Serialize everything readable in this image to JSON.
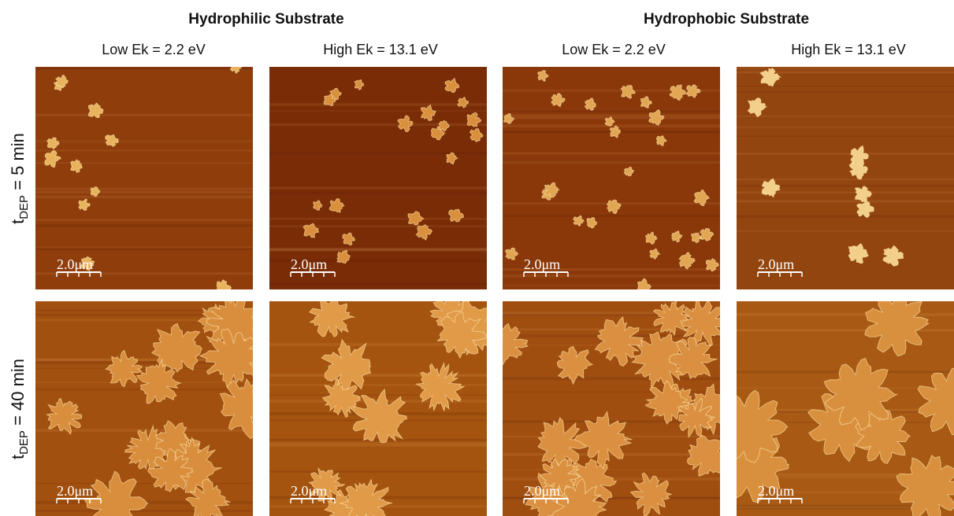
{
  "header": {
    "groups": [
      "Hydrophilic Substrate",
      "Hydrophobic Substrate"
    ],
    "columns": [
      "Low Ek = 2.2 eV",
      "High Ek = 13.1 eV",
      "Low Ek = 2.2 eV",
      "High Ek = 13.1 eV"
    ],
    "rows": [
      {
        "t": "t",
        "sub": "DEP",
        "rest": " = 5 min"
      },
      {
        "t": "t",
        "sub": "DEP",
        "rest": " = 40 min"
      }
    ]
  },
  "panels": [
    [
      {
        "scale_bar": "2.0μm"
      },
      {
        "scale_bar": "2.0μm"
      },
      {
        "scale_bar": "2.0μm"
      },
      {
        "scale_bar": "2.0μm"
      }
    ],
    [
      {
        "scale_bar": "2.0μm"
      },
      {
        "scale_bar": "2.0μm"
      },
      {
        "scale_bar": "2.0μm"
      },
      {
        "scale_bar": "2.0μm"
      }
    ]
  ]
}
